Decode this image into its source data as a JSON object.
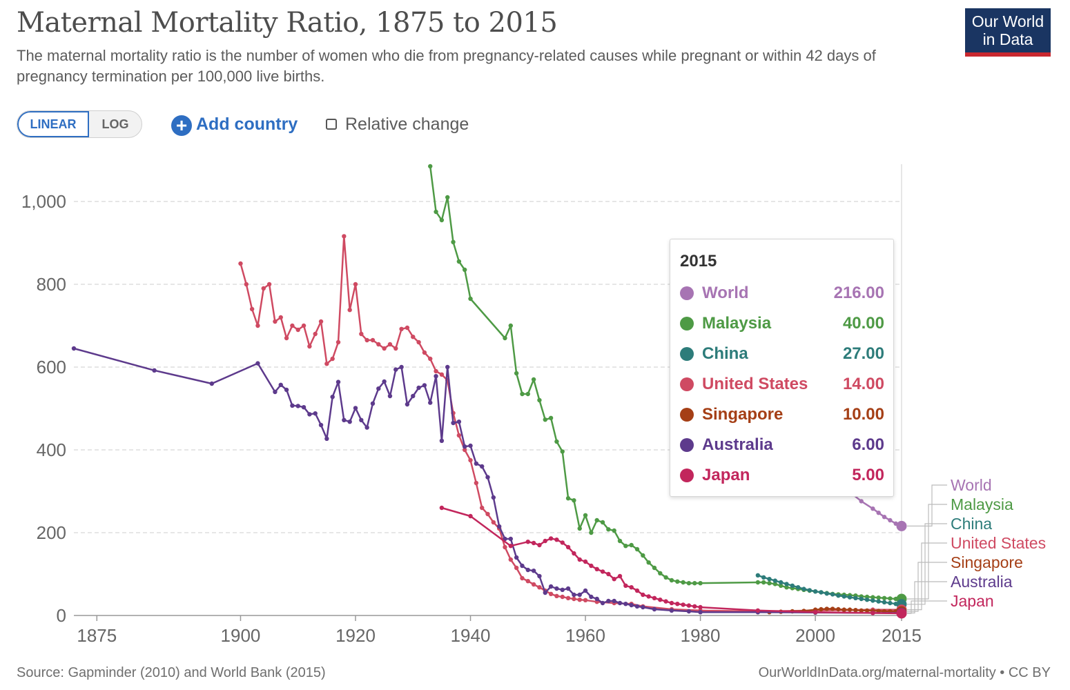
{
  "header": {
    "title": "Maternal Mortality Ratio, 1875 to 2015",
    "subtitle": "The maternal mortality ratio is the number of women who die from pregnancy-related causes while pregnant or within 42 days of pregnancy termination per 100,000 live births."
  },
  "logo": {
    "line1": "Our World",
    "line2": "in Data",
    "bg_color": "#1a3562",
    "accent_color": "#c9282f"
  },
  "controls": {
    "linear_label": "LINEAR",
    "log_label": "LOG",
    "selected_scale": "LINEAR",
    "add_country_label": "Add country",
    "relative_change_label": "Relative change",
    "relative_change_checked": false
  },
  "tooltip": {
    "year": "2015",
    "rows": [
      {
        "name": "World",
        "value": "216.00",
        "color": "#a774b3"
      },
      {
        "name": "Malaysia",
        "value": "40.00",
        "color": "#4e9a45"
      },
      {
        "name": "China",
        "value": "27.00",
        "color": "#2d7c7a"
      },
      {
        "name": "United States",
        "value": "14.00",
        "color": "#cf4a62"
      },
      {
        "name": "Singapore",
        "value": "10.00",
        "color": "#a53f16"
      },
      {
        "name": "Australia",
        "value": "6.00",
        "color": "#5d3a8c"
      },
      {
        "name": "Japan",
        "value": "5.00",
        "color": "#c2265c"
      }
    ]
  },
  "footer": {
    "source": "Source: Gapminder (2010) and World Bank (2015)",
    "credit": "OurWorldInData.org/maternal-mortality • CC BY"
  },
  "chart_data": {
    "type": "line",
    "x_ticks": [
      1875,
      1900,
      1920,
      1940,
      1960,
      1980,
      2000,
      2015
    ],
    "y_ticks": [
      0,
      200,
      400,
      600,
      800,
      1000
    ],
    "xlim": [
      1871,
      2015
    ],
    "ylim": [
      0,
      1090
    ],
    "grid": "horizontal dashed",
    "highlight_year": 2015,
    "legend": "right end labels",
    "series": [
      {
        "name": "World",
        "color": "#a774b3",
        "x": [
          1990,
          1993,
          1996,
          1999,
          2000,
          2002,
          2004,
          2006,
          2008,
          2010,
          2011,
          2012,
          2013,
          2014,
          2015
        ],
        "y": [
          385,
          378,
          372,
          362,
          355,
          338,
          318,
          298,
          276,
          258,
          248,
          238,
          230,
          222,
          216
        ]
      },
      {
        "name": "Malaysia",
        "color": "#4e9a45",
        "x": [
          1933,
          1934,
          1935,
          1936,
          1937,
          1938,
          1939,
          1940,
          1946,
          1947,
          1948,
          1949,
          1950,
          1951,
          1952,
          1953,
          1954,
          1955,
          1956,
          1957,
          1958,
          1959,
          1960,
          1961,
          1962,
          1963,
          1964,
          1965,
          1966,
          1967,
          1968,
          1969,
          1970,
          1971,
          1972,
          1973,
          1974,
          1975,
          1976,
          1977,
          1978,
          1979,
          1980,
          1990,
          1991,
          1992,
          1993,
          1994,
          1995,
          1996,
          1997,
          1998,
          1999,
          2000,
          2001,
          2002,
          2003,
          2004,
          2005,
          2006,
          2007,
          2008,
          2009,
          2010,
          2011,
          2012,
          2013,
          2014,
          2015
        ],
        "y": [
          1085,
          975,
          955,
          1010,
          902,
          855,
          835,
          765,
          670,
          700,
          585,
          535,
          535,
          570,
          520,
          473,
          477,
          420,
          396,
          283,
          278,
          210,
          242,
          200,
          230,
          225,
          208,
          205,
          180,
          168,
          170,
          160,
          145,
          128,
          115,
          102,
          92,
          85,
          82,
          80,
          78,
          78,
          78,
          80,
          80,
          78,
          76,
          72,
          68,
          66,
          64,
          62,
          60,
          58,
          56,
          54,
          52,
          51,
          50,
          49,
          48,
          46,
          45,
          44,
          43,
          42,
          41,
          40,
          40
        ]
      },
      {
        "name": "China",
        "color": "#2d7c7a",
        "x": [
          1990,
          1991,
          1992,
          1993,
          1994,
          1995,
          1996,
          1997,
          1998,
          1999,
          2000,
          2001,
          2002,
          2003,
          2004,
          2005,
          2006,
          2007,
          2008,
          2009,
          2010,
          2011,
          2012,
          2013,
          2014,
          2015
        ],
        "y": [
          97,
          92,
          88,
          84,
          80,
          76,
          72,
          68,
          64,
          61,
          58,
          56,
          53,
          51,
          48,
          46,
          44,
          42,
          40,
          38,
          36,
          34,
          32,
          30,
          28,
          27
        ]
      },
      {
        "name": "United States",
        "color": "#cf4a62",
        "x": [
          1900,
          1901,
          1902,
          1903,
          1904,
          1905,
          1906,
          1907,
          1908,
          1909,
          1910,
          1911,
          1912,
          1913,
          1914,
          1915,
          1916,
          1917,
          1918,
          1919,
          1920,
          1921,
          1922,
          1923,
          1924,
          1925,
          1926,
          1927,
          1928,
          1929,
          1930,
          1931,
          1932,
          1933,
          1934,
          1935,
          1936,
          1937,
          1938,
          1939,
          1940,
          1941,
          1942,
          1943,
          1944,
          1945,
          1946,
          1947,
          1948,
          1949,
          1950,
          1951,
          1952,
          1953,
          1954,
          1955,
          1956,
          1957,
          1958,
          1959,
          1960,
          1962,
          1965,
          1968,
          1970,
          1975,
          1980,
          1990,
          2000,
          2005,
          2010,
          2015
        ],
        "y": [
          850,
          800,
          740,
          700,
          790,
          800,
          710,
          720,
          670,
          700,
          690,
          700,
          650,
          680,
          710,
          608,
          620,
          660,
          916,
          738,
          800,
          680,
          665,
          665,
          655,
          645,
          655,
          645,
          692,
          695,
          673,
          660,
          635,
          620,
          590,
          582,
          568,
          489,
          435,
          400,
          375,
          320,
          260,
          245,
          225,
          210,
          165,
          135,
          115,
          90,
          83,
          75,
          68,
          60,
          52,
          47,
          45,
          42,
          40,
          38,
          37,
          33,
          30,
          28,
          22,
          15,
          12,
          10,
          12,
          13,
          14,
          14
        ]
      },
      {
        "name": "Singapore",
        "color": "#a53f16",
        "x": [
          1990,
          1992,
          1994,
          1996,
          1998,
          2000,
          2001,
          2002,
          2003,
          2004,
          2005,
          2006,
          2007,
          2008,
          2009,
          2010,
          2011,
          2012,
          2013,
          2014,
          2015
        ],
        "y": [
          8,
          8,
          9,
          10,
          11,
          14,
          15,
          16,
          16,
          15,
          14,
          14,
          13,
          12,
          12,
          11,
          11,
          10,
          10,
          10,
          10
        ]
      },
      {
        "name": "Australia",
        "color": "#5d3a8c",
        "x": [
          1871,
          1885,
          1895,
          1903,
          1906,
          1907,
          1908,
          1909,
          1910,
          1911,
          1912,
          1913,
          1914,
          1915,
          1916,
          1917,
          1918,
          1919,
          1920,
          1921,
          1922,
          1923,
          1924,
          1925,
          1926,
          1927,
          1928,
          1929,
          1930,
          1931,
          1932,
          1933,
          1934,
          1935,
          1936,
          1937,
          1938,
          1939,
          1940,
          1941,
          1942,
          1943,
          1944,
          1945,
          1946,
          1947,
          1948,
          1949,
          1950,
          1951,
          1952,
          1953,
          1954,
          1955,
          1956,
          1957,
          1958,
          1959,
          1960,
          1961,
          1962,
          1963,
          1964,
          1965,
          1966,
          1967,
          1968,
          1969,
          1970,
          1972,
          1975,
          1978,
          1980,
          1990,
          2000,
          2010,
          2015
        ],
        "y": [
          645,
          592,
          560,
          609,
          540,
          557,
          545,
          507,
          506,
          503,
          486,
          488,
          460,
          427,
          528,
          564,
          472,
          468,
          501,
          472,
          454,
          512,
          548,
          565,
          530,
          594,
          600,
          510,
          530,
          550,
          556,
          514,
          578,
          422,
          600,
          465,
          468,
          408,
          410,
          367,
          360,
          334,
          285,
          215,
          185,
          185,
          140,
          120,
          110,
          108,
          95,
          55,
          70,
          65,
          62,
          65,
          50,
          50,
          60,
          45,
          40,
          30,
          35,
          35,
          30,
          28,
          25,
          22,
          20,
          15,
          12,
          10,
          8,
          8,
          7,
          6,
          6
        ]
      },
      {
        "name": "Japan",
        "color": "#c2265c",
        "x": [
          1935,
          1940,
          1947,
          1950,
          1951,
          1952,
          1953,
          1954,
          1955,
          1956,
          1957,
          1958,
          1959,
          1960,
          1961,
          1962,
          1963,
          1964,
          1965,
          1966,
          1967,
          1968,
          1969,
          1970,
          1971,
          1972,
          1973,
          1974,
          1975,
          1976,
          1977,
          1978,
          1979,
          1980,
          1990,
          2000,
          2010,
          2015
        ],
        "y": [
          260,
          240,
          168,
          178,
          175,
          170,
          180,
          186,
          183,
          176,
          165,
          150,
          135,
          130,
          120,
          112,
          106,
          100,
          88,
          95,
          72,
          68,
          60,
          50,
          46,
          42,
          38,
          34,
          30,
          28,
          26,
          24,
          22,
          20,
          12,
          8,
          6,
          5
        ]
      }
    ]
  }
}
